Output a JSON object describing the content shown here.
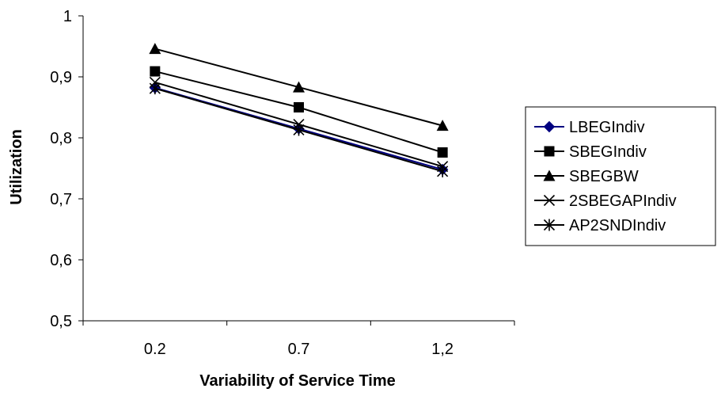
{
  "chart_data": {
    "type": "line",
    "title": "",
    "xlabel": "Variability of Service Time",
    "ylabel": "Utilization",
    "categories": [
      "0.2",
      "0.7",
      "1,2"
    ],
    "ylim": [
      0.5,
      1.0
    ],
    "yticks": [
      0.5,
      0.6,
      0.7,
      0.8,
      0.9,
      1.0
    ],
    "ytick_labels": [
      "0,5",
      "0,6",
      "0,7",
      "0,8",
      "0,9",
      "1"
    ],
    "grid": false,
    "legend": "right",
    "series": [
      {
        "name": "LBEGIndiv",
        "values": [
          0.882,
          0.815,
          0.748
        ],
        "color": "#000080",
        "marker": "diamond"
      },
      {
        "name": "SBEGIndiv",
        "values": [
          0.909,
          0.85,
          0.776
        ],
        "color": "#000000",
        "marker": "square"
      },
      {
        "name": "SBEGBW",
        "values": [
          0.946,
          0.883,
          0.82
        ],
        "color": "#000000",
        "marker": "triangle"
      },
      {
        "name": "2SBEGAPIndiv",
        "values": [
          0.891,
          0.822,
          0.753
        ],
        "color": "#000000",
        "marker": "x"
      },
      {
        "name": "AP2SNDIndiv",
        "values": [
          0.881,
          0.813,
          0.745
        ],
        "color": "#000000",
        "marker": "star"
      }
    ]
  }
}
